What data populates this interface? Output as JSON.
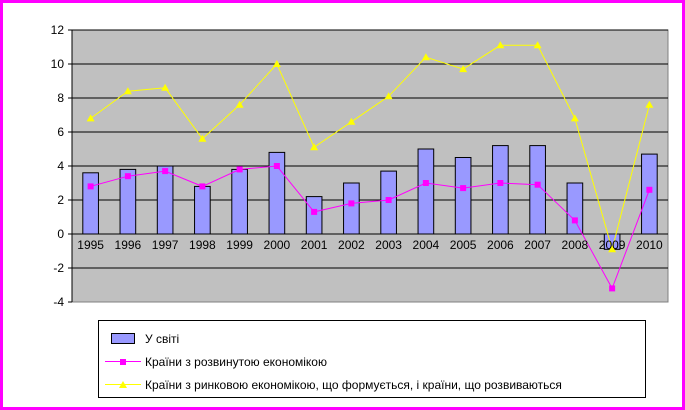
{
  "chart_data": {
    "type": "bar",
    "title": "",
    "xlabel": "",
    "ylabel": "",
    "categories": [
      "1995",
      "1996",
      "1997",
      "1998",
      "1999",
      "2000",
      "2001",
      "2002",
      "2003",
      "2004",
      "2005",
      "2006",
      "2007",
      "2008",
      "2009",
      "2010"
    ],
    "ylim": [
      -4,
      12
    ],
    "yticks": [
      -4,
      -2,
      0,
      2,
      4,
      6,
      8,
      10,
      12
    ],
    "grid": true,
    "legend_position": "bottom",
    "series": [
      {
        "name": "У світі",
        "type": "bar",
        "color": "#9999ff",
        "values": [
          3.6,
          3.8,
          4.0,
          2.8,
          3.8,
          4.8,
          2.2,
          3.0,
          3.7,
          5.0,
          4.5,
          5.2,
          5.2,
          3.0,
          -0.9,
          4.7
        ]
      },
      {
        "name": "Країни з розвинутою економікою",
        "type": "line",
        "color": "#ff00ff",
        "marker": "square",
        "values": [
          2.8,
          3.4,
          3.7,
          2.8,
          3.8,
          4.0,
          1.3,
          1.8,
          2.0,
          3.0,
          2.7,
          3.0,
          2.9,
          0.8,
          -3.2,
          2.6
        ]
      },
      {
        "name": "Країни з ринковою економікою, що формується, і країни, що розвиваються",
        "type": "line",
        "color": "#ffff00",
        "marker": "triangle",
        "values": [
          6.8,
          8.4,
          8.6,
          5.6,
          7.6,
          10.0,
          5.1,
          6.6,
          8.1,
          10.4,
          9.7,
          11.1,
          11.1,
          6.8,
          -0.9,
          7.6
        ]
      }
    ]
  },
  "colors": {
    "frame": "#ff00ff",
    "plot_background": "#c0c0c0",
    "gridline": "#000000"
  }
}
